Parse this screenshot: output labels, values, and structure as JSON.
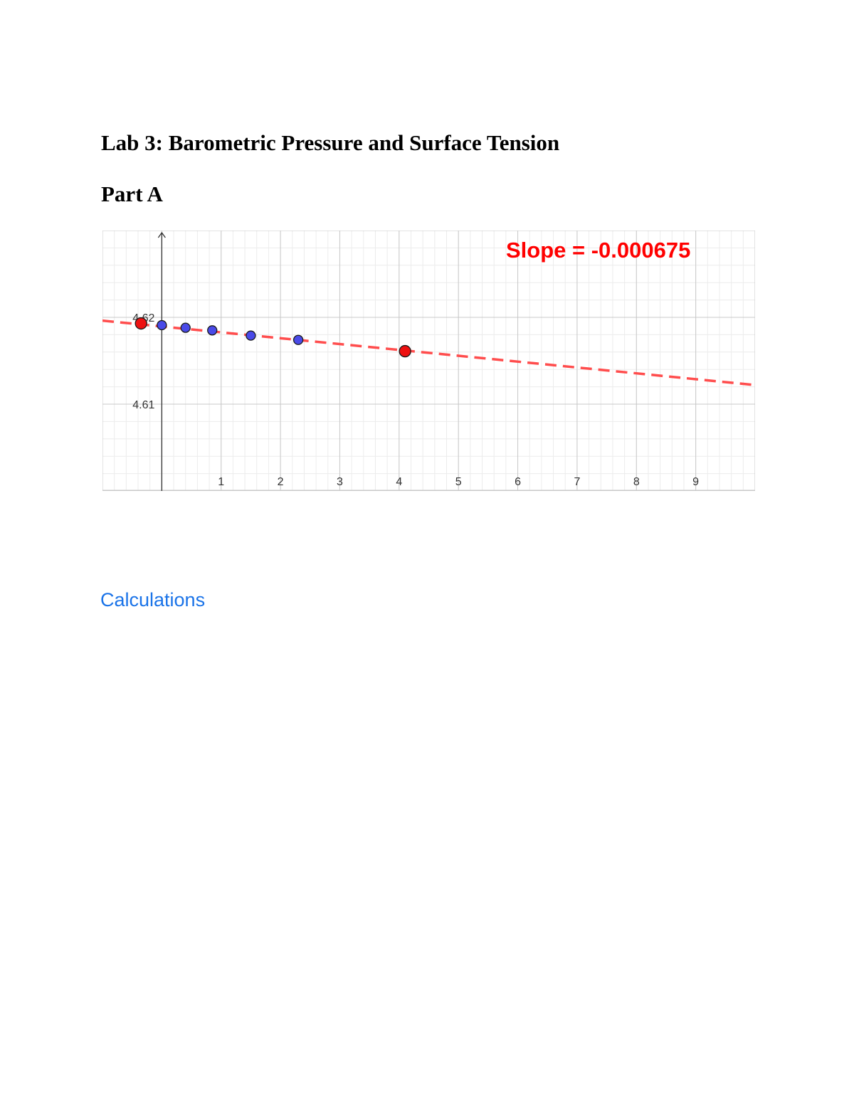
{
  "document": {
    "title": "Lab 3: Barometric Pressure and Surface Tension",
    "section": "Part A",
    "calculations_heading": "Calculations"
  },
  "chart_data": {
    "type": "scatter",
    "annotation": "Slope = -0.000675",
    "x_ticks": [
      "1",
      "2",
      "3",
      "4",
      "5",
      "6",
      "7",
      "8",
      "9"
    ],
    "y_ticks": [
      "4.61",
      "4.62"
    ],
    "xlim": [
      -1,
      10
    ],
    "ylim": [
      4.6,
      4.63
    ],
    "grid": true,
    "series": [
      {
        "role": "measured",
        "color": "#4a4ae8",
        "points": [
          [
            0.0,
            4.6191
          ],
          [
            0.4,
            4.6188
          ],
          [
            0.85,
            4.6185
          ],
          [
            1.5,
            4.6179
          ],
          [
            2.3,
            4.6174
          ]
        ]
      },
      {
        "role": "fit-endpoints",
        "color": "#ee1111",
        "points": [
          [
            -0.35,
            4.6193
          ],
          [
            4.1,
            4.6161
          ]
        ]
      }
    ],
    "fit_line": {
      "color": "#ff4d4d",
      "style": "dashed",
      "points": [
        [
          -1.0,
          4.61962
        ],
        [
          10.0,
          4.6122
        ]
      ]
    }
  }
}
